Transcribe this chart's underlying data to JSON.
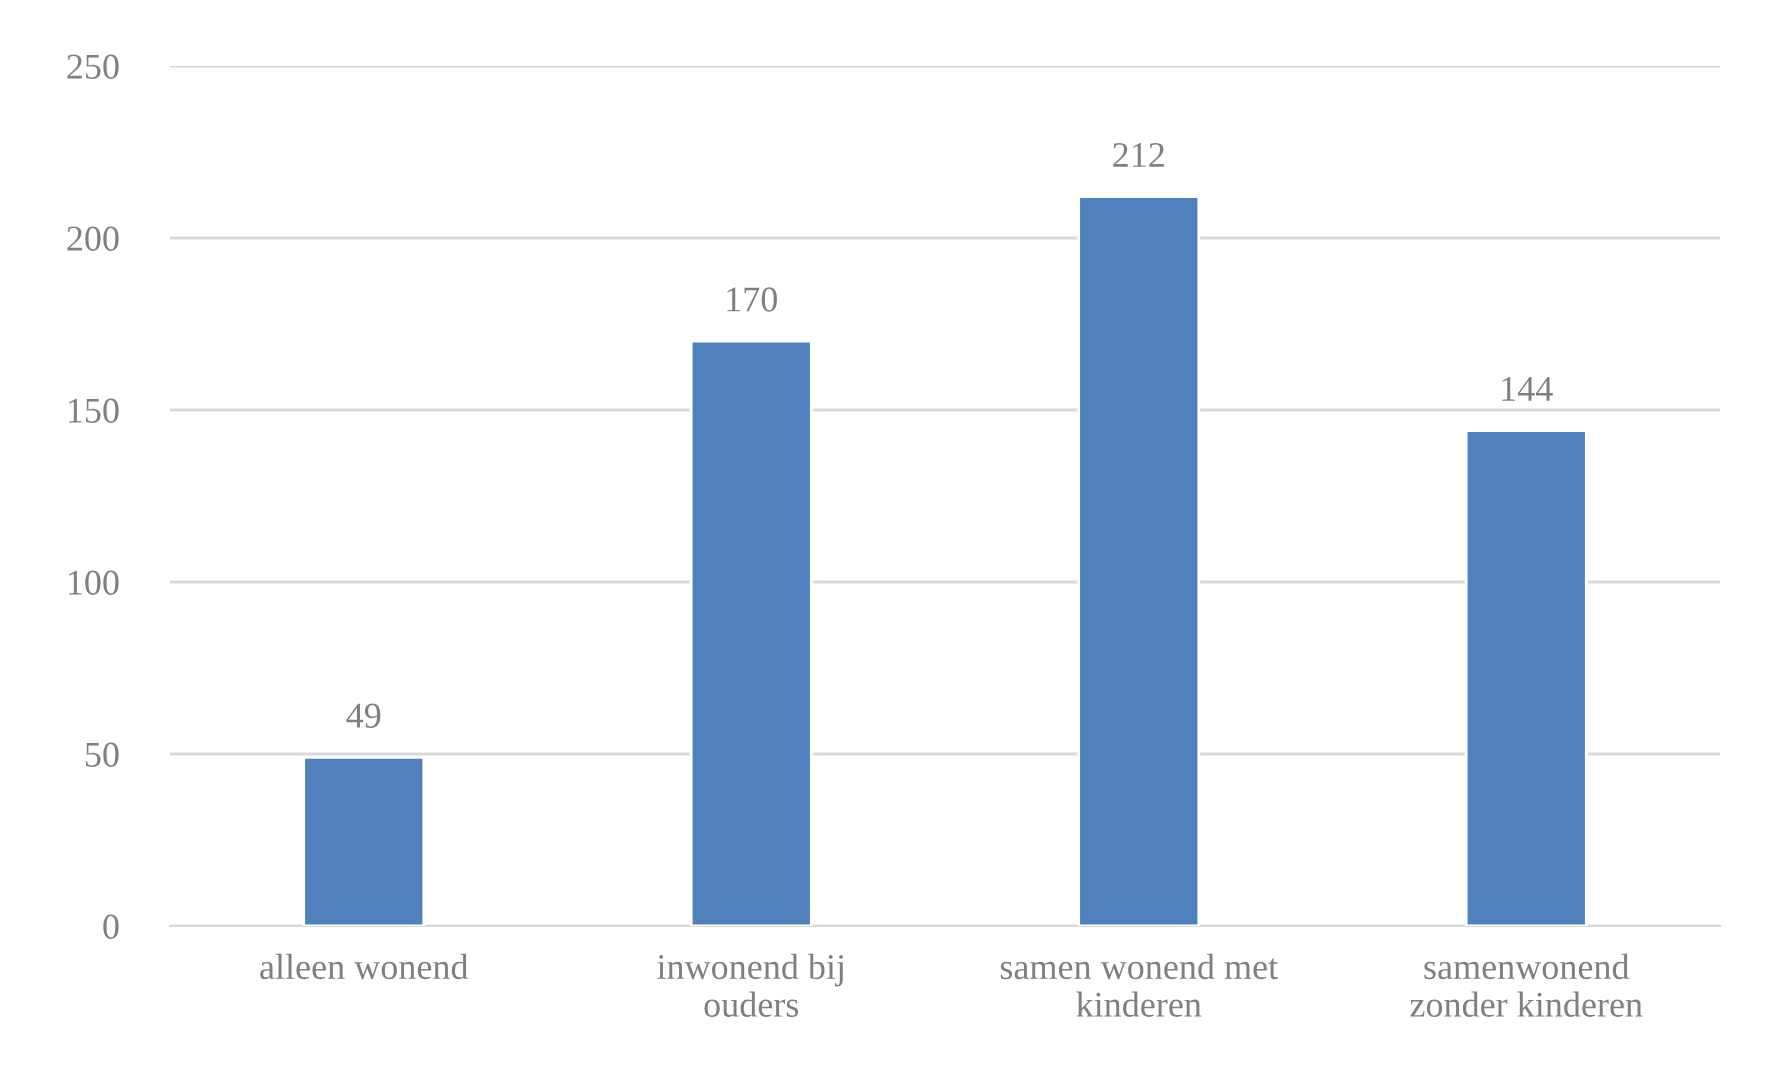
{
  "chart_data": {
    "type": "bar",
    "categories": [
      "alleen wonend",
      "inwonend bij ouders",
      "samen wonend met kinderen",
      "samenwonend zonder kinderen"
    ],
    "values": [
      49,
      170,
      212,
      144
    ],
    "color": "#4f81bd",
    "ylim": [
      0,
      250
    ],
    "yticks": [
      0,
      50,
      100,
      150,
      200,
      250
    ],
    "grid": "y",
    "data_labels": true
  }
}
